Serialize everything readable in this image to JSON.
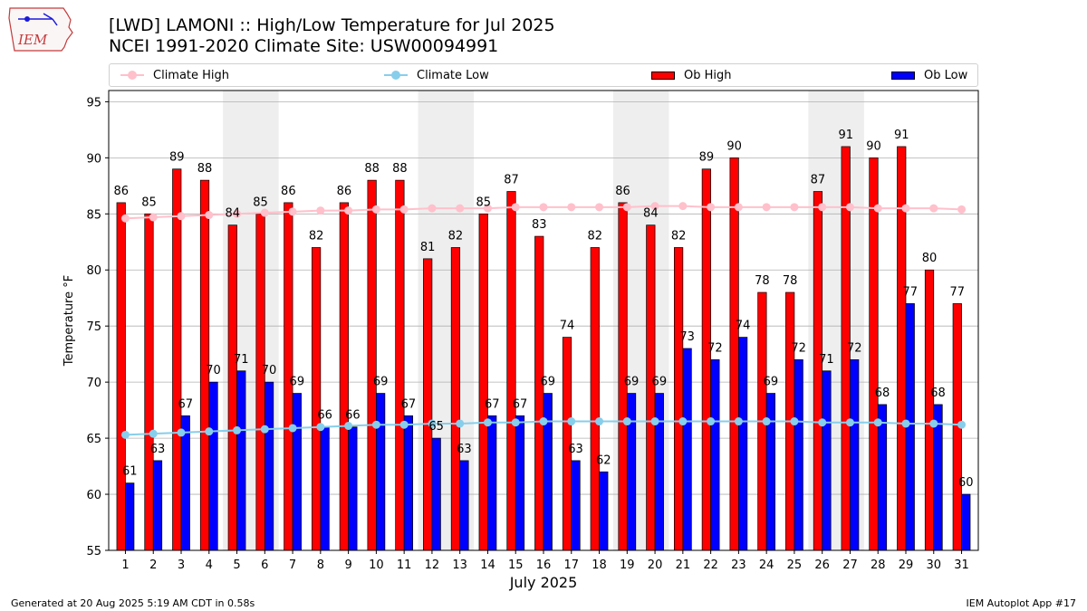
{
  "header": {
    "logo_text": "IEM",
    "title_line1": "[LWD] LAMONI :: High/Low Temperature for Jul 2025",
    "title_line2": "NCEI 1991-2020 Climate Site: USW00094991"
  },
  "legend": {
    "placement": "top",
    "items": [
      {
        "label": "Climate High",
        "kind": "line",
        "color": "#ffc0cb"
      },
      {
        "label": "Climate Low",
        "kind": "line",
        "color": "#87ceeb"
      },
      {
        "label": "Ob High",
        "kind": "bar",
        "color": "#ff0000"
      },
      {
        "label": "Ob Low",
        "kind": "bar",
        "color": "#0000ff"
      }
    ]
  },
  "footer": {
    "left": "Generated at 20 Aug 2025 5:19 AM CDT in 0.58s",
    "right": "IEM Autoplot App #17"
  },
  "chart_data": {
    "type": "bar",
    "xlabel": "July 2025",
    "ylabel": "Temperature °F",
    "ylim": [
      55,
      96
    ],
    "yticks": [
      55,
      60,
      65,
      70,
      75,
      80,
      85,
      90,
      95
    ],
    "grid": true,
    "categories": [
      "1",
      "2",
      "3",
      "4",
      "5",
      "6",
      "7",
      "8",
      "9",
      "10",
      "11",
      "12",
      "13",
      "14",
      "15",
      "16",
      "17",
      "18",
      "19",
      "20",
      "21",
      "22",
      "23",
      "24",
      "25",
      "26",
      "27",
      "28",
      "29",
      "30",
      "31"
    ],
    "weekend_shading": [
      [
        5,
        6
      ],
      [
        12,
        13
      ],
      [
        19,
        20
      ],
      [
        26,
        27
      ]
    ],
    "series": [
      {
        "name": "Ob High",
        "type": "bar",
        "color": "#ff0000",
        "values": [
          86,
          85,
          89,
          88,
          84,
          85,
          86,
          82,
          86,
          88,
          88,
          81,
          82,
          85,
          87,
          83,
          74,
          82,
          86,
          84,
          82,
          89,
          90,
          78,
          78,
          87,
          91,
          90,
          91,
          80,
          77
        ]
      },
      {
        "name": "Ob Low",
        "type": "bar",
        "color": "#0000ff",
        "values": [
          61,
          63,
          67,
          70,
          71,
          70,
          69,
          66,
          66,
          69,
          67,
          65,
          63,
          67,
          67,
          69,
          63,
          62,
          69,
          69,
          73,
          72,
          74,
          69,
          72,
          71,
          72,
          68,
          77,
          68,
          60
        ]
      },
      {
        "name": "Climate High",
        "type": "line",
        "color": "#ffc0cb",
        "values": [
          84.6,
          84.7,
          84.8,
          84.9,
          85.0,
          85.1,
          85.2,
          85.3,
          85.3,
          85.4,
          85.4,
          85.5,
          85.5,
          85.5,
          85.6,
          85.6,
          85.6,
          85.6,
          85.6,
          85.7,
          85.7,
          85.6,
          85.6,
          85.6,
          85.6,
          85.6,
          85.6,
          85.5,
          85.5,
          85.5,
          85.4
        ]
      },
      {
        "name": "Climate Low",
        "type": "line",
        "color": "#87ceeb",
        "values": [
          65.3,
          65.4,
          65.5,
          65.6,
          65.7,
          65.8,
          65.9,
          66.0,
          66.1,
          66.2,
          66.2,
          66.3,
          66.3,
          66.4,
          66.4,
          66.5,
          66.5,
          66.5,
          66.5,
          66.5,
          66.5,
          66.5,
          66.5,
          66.5,
          66.5,
          66.4,
          66.4,
          66.4,
          66.3,
          66.3,
          66.2
        ]
      }
    ]
  }
}
